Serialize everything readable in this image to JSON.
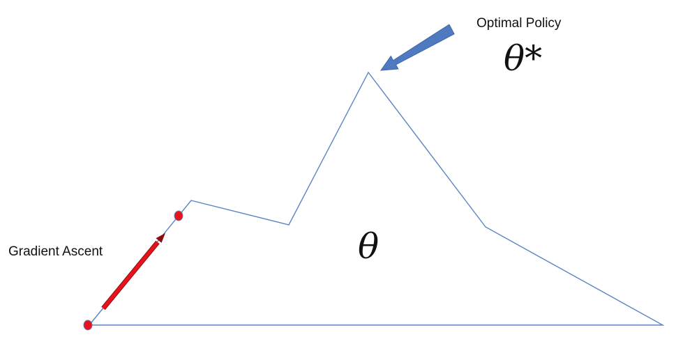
{
  "labels": {
    "optimal_policy": "Optimal Policy",
    "theta_star": "θ*",
    "theta": "θ",
    "gradient_ascent": "Gradient Ascent"
  },
  "colors": {
    "outline": "#5b84c4",
    "arrow_blue": "#4f7ac0",
    "arrow_blue_edge": "#3f66a8",
    "arrow_red": "#e8121a",
    "arrow_red_edge": "#8c1010",
    "point_fill": "#e8121a",
    "point_edge": "#5b84c4"
  }
}
